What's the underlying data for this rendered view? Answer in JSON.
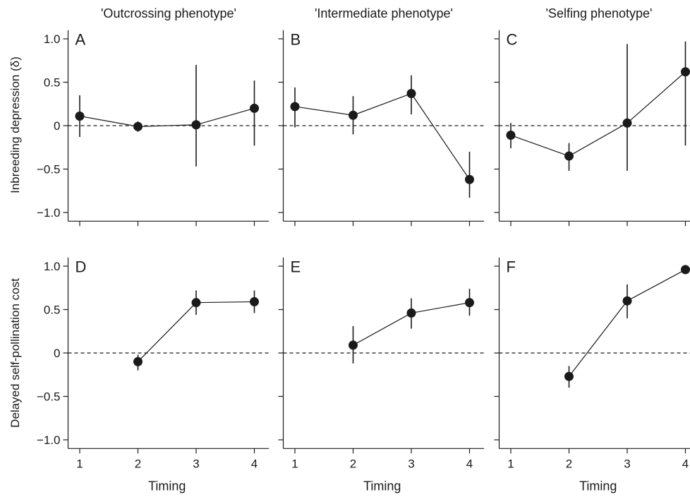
{
  "column_titles": [
    "'Outcrossing phenotype'",
    "'Intermediate phenotype'",
    "'Selfing phenotype'"
  ],
  "row_ylabels": [
    "Inbreeding depression (δ)",
    "Delayed self-pollination cost"
  ],
  "xlabel": "Timing",
  "chart_data": [
    {
      "type": "scatter",
      "panel": "A",
      "row": 0,
      "col": 0,
      "title": "'Outcrossing phenotype'",
      "xlabel": "",
      "ylabel": "Inbreeding depression (δ)",
      "x": [
        1,
        2,
        3,
        4
      ],
      "y": [
        0.11,
        -0.01,
        0.01,
        0.2
      ],
      "err_low": [
        -0.13,
        -0.07,
        -0.47,
        -0.23
      ],
      "err_high": [
        0.35,
        0.05,
        0.7,
        0.52
      ],
      "xlim": [
        0.8,
        4.25
      ],
      "ylim": [
        -1.1,
        1.1
      ],
      "yticks": [
        -1.0,
        -0.5,
        0,
        0.5,
        1.0
      ],
      "ytick_labels": [
        "−1.0",
        "−0.5",
        "0",
        "0.5",
        "1.0"
      ],
      "xticks": [
        1,
        2,
        3,
        4
      ],
      "xtick_labels": [],
      "reference_line": 0
    },
    {
      "type": "scatter",
      "panel": "B",
      "row": 0,
      "col": 1,
      "title": "'Intermediate phenotype'",
      "xlabel": "",
      "ylabel": "",
      "x": [
        1,
        2,
        3,
        4
      ],
      "y": [
        0.22,
        0.12,
        0.37,
        -0.62
      ],
      "err_low": [
        -0.02,
        -0.1,
        0.13,
        -0.83
      ],
      "err_high": [
        0.44,
        0.34,
        0.58,
        -0.3
      ],
      "xlim": [
        0.8,
        4.25
      ],
      "ylim": [
        -1.1,
        1.1
      ],
      "yticks": [
        -1.0,
        -0.5,
        0,
        0.5,
        1.0
      ],
      "ytick_labels": [],
      "xticks": [
        1,
        2,
        3,
        4
      ],
      "xtick_labels": [],
      "reference_line": 0
    },
    {
      "type": "scatter",
      "panel": "C",
      "row": 0,
      "col": 2,
      "title": "'Selfing phenotype'",
      "xlabel": "",
      "ylabel": "",
      "x": [
        1,
        2,
        3,
        4
      ],
      "y": [
        -0.11,
        -0.35,
        0.03,
        0.62
      ],
      "err_low": [
        -0.26,
        -0.52,
        -0.52,
        -0.23
      ],
      "err_high": [
        0.03,
        -0.2,
        0.94,
        0.97
      ],
      "xlim": [
        0.8,
        4.25
      ],
      "ylim": [
        -1.1,
        1.1
      ],
      "yticks": [
        -1.0,
        -0.5,
        0,
        0.5,
        1.0
      ],
      "ytick_labels": [],
      "xticks": [
        1,
        2,
        3,
        4
      ],
      "xtick_labels": [],
      "reference_line": 0
    },
    {
      "type": "scatter",
      "panel": "D",
      "row": 1,
      "col": 0,
      "title": "",
      "xlabel": "Timing",
      "ylabel": "Delayed self-pollination cost",
      "x": [
        2,
        3,
        4
      ],
      "y": [
        -0.1,
        0.58,
        0.59
      ],
      "err_low": [
        -0.2,
        0.44,
        0.46
      ],
      "err_high": [
        -0.02,
        0.72,
        0.72
      ],
      "xlim": [
        0.8,
        4.25
      ],
      "ylim": [
        -1.1,
        1.1
      ],
      "yticks": [
        -1.0,
        -0.5,
        0,
        0.5,
        1.0
      ],
      "ytick_labels": [
        "−1.0",
        "−0.5",
        "0",
        "0.5",
        "1.0"
      ],
      "xticks": [
        1,
        2,
        3,
        4
      ],
      "xtick_labels": [
        "1",
        "2",
        "3",
        "4"
      ],
      "reference_line": 0
    },
    {
      "type": "scatter",
      "panel": "E",
      "row": 1,
      "col": 1,
      "title": "",
      "xlabel": "Timing",
      "ylabel": "",
      "x": [
        2,
        3,
        4
      ],
      "y": [
        0.09,
        0.46,
        0.58
      ],
      "err_low": [
        -0.12,
        0.28,
        0.43
      ],
      "err_high": [
        0.31,
        0.63,
        0.74
      ],
      "xlim": [
        0.8,
        4.25
      ],
      "ylim": [
        -1.1,
        1.1
      ],
      "yticks": [
        -1.0,
        -0.5,
        0,
        0.5,
        1.0
      ],
      "ytick_labels": [],
      "xticks": [
        1,
        2,
        3,
        4
      ],
      "xtick_labels": [
        "1",
        "2",
        "3",
        "4"
      ],
      "reference_line": 0
    },
    {
      "type": "scatter",
      "panel": "F",
      "row": 1,
      "col": 2,
      "title": "",
      "xlabel": "Timing",
      "ylabel": "",
      "x": [
        2,
        3,
        4
      ],
      "y": [
        -0.27,
        0.6,
        0.96
      ],
      "err_low": [
        -0.4,
        0.4,
        0.96
      ],
      "err_high": [
        -0.15,
        0.79,
        0.96
      ],
      "xlim": [
        0.8,
        4.25
      ],
      "ylim": [
        -1.1,
        1.1
      ],
      "yticks": [
        -1.0,
        -0.5,
        0,
        0.5,
        1.0
      ],
      "ytick_labels": [],
      "xticks": [
        1,
        2,
        3,
        4
      ],
      "xtick_labels": [
        "1",
        "2",
        "3",
        "4"
      ],
      "reference_line": 0
    }
  ]
}
